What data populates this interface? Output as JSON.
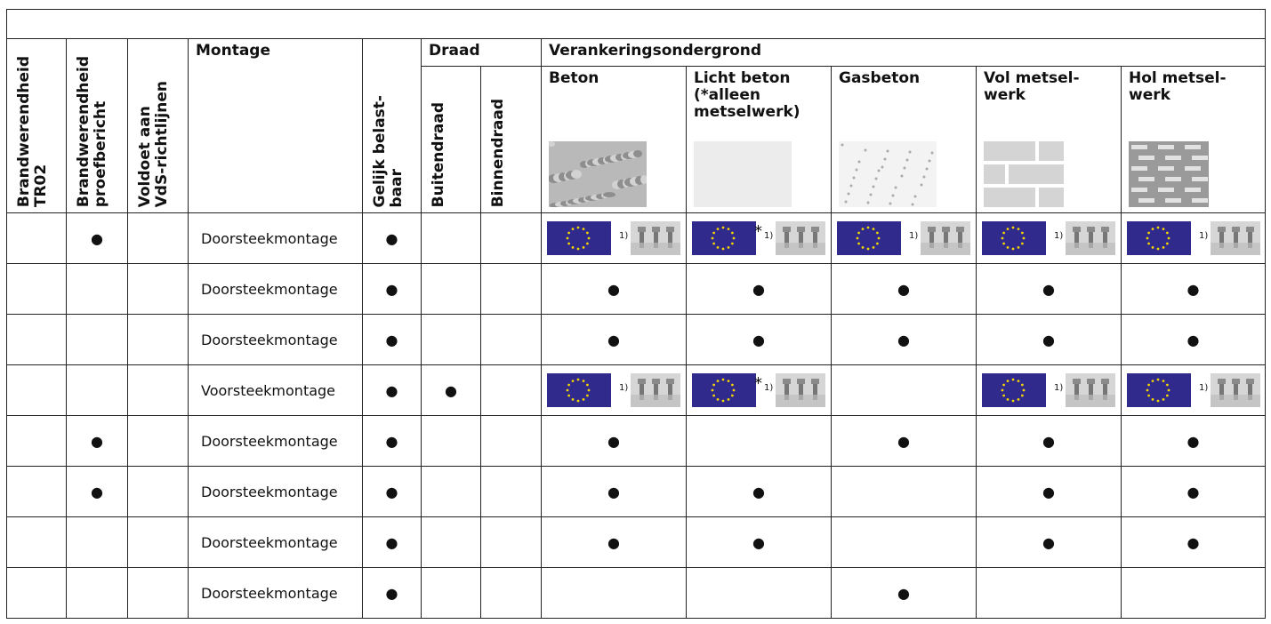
{
  "header": {
    "group_draad": "Draad",
    "group_ondergrond": "Verankeringsondergrond",
    "columns": [
      "Brandwerendheid\nTR02",
      "Brandwerendheid\nproefbericht",
      "Voldoet aan\nVdS-richtlijnen",
      "Montage",
      "Gelijk belast-\nbaar",
      "Buitendraad",
      "Binnendraad",
      "Beton",
      "Licht beton\n(*alleen\nmetselwerk)",
      "Gasbeton",
      "Vol metsel-\nwerk",
      "Hol metsel-\nwerk"
    ]
  },
  "table": {
    "rows": [
      [
        null,
        "●",
        null,
        "Doorsteekmontage",
        "●",
        null,
        null,
        {
          "footnote": "1)"
        },
        {
          "marker": "*",
          "footnote": "1)"
        },
        {
          "footnote": "1)"
        },
        {
          "footnote": "1)"
        },
        {
          "footnote": "1)"
        }
      ],
      [
        null,
        null,
        null,
        "Doorsteekmontage",
        "●",
        null,
        null,
        "●",
        "●",
        "●",
        "●",
        "●"
      ],
      [
        null,
        null,
        null,
        "Doorsteekmontage",
        "●",
        null,
        null,
        "●",
        "●",
        "●",
        "●",
        "●"
      ],
      [
        null,
        null,
        null,
        "Voorsteekmontage",
        "●",
        "●",
        null,
        {
          "footnote": "1)"
        },
        {
          "marker": "*",
          "footnote": "1)"
        },
        null,
        {
          "footnote": "1)"
        },
        {
          "footnote": "1)"
        }
      ],
      [
        null,
        "●",
        null,
        "Doorsteekmontage",
        "●",
        null,
        null,
        "●",
        null,
        "●",
        "●",
        "●"
      ],
      [
        null,
        "●",
        null,
        "Doorsteekmontage",
        "●",
        null,
        null,
        "●",
        "●",
        null,
        "●",
        "●"
      ],
      [
        null,
        null,
        null,
        "Doorsteekmontage",
        "●",
        null,
        null,
        "●",
        "●",
        null,
        "●",
        "●"
      ],
      [
        null,
        null,
        null,
        "Doorsteekmontage",
        "●",
        null,
        null,
        null,
        null,
        "●",
        null,
        null
      ]
    ]
  }
}
